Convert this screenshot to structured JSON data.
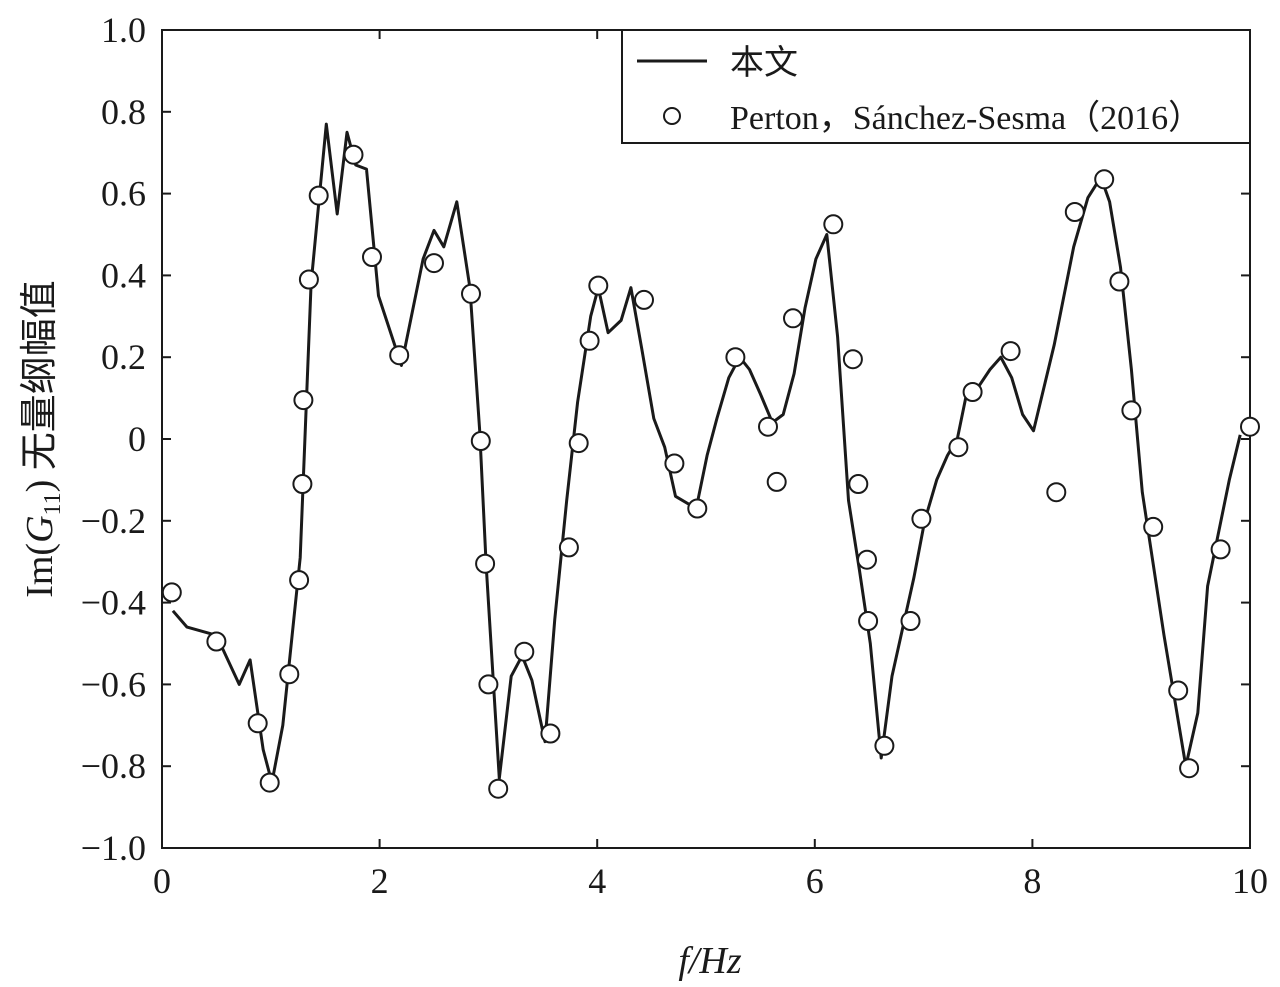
{
  "chart_data": {
    "type": "line",
    "xlabel": "f/Hz",
    "ylabel_parts": {
      "prefix": "Im(",
      "var": "G",
      "sub": "11",
      "suffix": ") 无量纲幅值"
    },
    "xlim": [
      0,
      10
    ],
    "ylim": [
      -1.0,
      1.0
    ],
    "x_ticks": [
      0,
      2,
      4,
      6,
      8,
      10
    ],
    "x_tick_labels": [
      "0",
      "2",
      "4",
      "6",
      "8",
      "10"
    ],
    "y_ticks": [
      -1.0,
      -0.8,
      -0.6,
      -0.4,
      -0.2,
      0,
      0.2,
      0.4,
      0.6,
      0.8,
      1.0
    ],
    "y_tick_labels": [
      "−1.0",
      "−0.8",
      "−0.6",
      "−0.4",
      "−0.2",
      "0",
      "0.2",
      "0.4",
      "0.6",
      "0.8",
      "1.0"
    ],
    "grid": false,
    "legend_position": "top-right",
    "series": [
      {
        "name": "本文",
        "style": "line",
        "color": "#1a1a1a",
        "x": [
          0.1,
          0.23,
          0.5,
          0.71,
          0.81,
          0.93,
          1.01,
          1.11,
          1.27,
          1.37,
          1.51,
          1.61,
          1.7,
          1.78,
          1.88,
          1.99,
          2.2,
          2.4,
          2.5,
          2.59,
          2.71,
          2.83,
          2.92,
          2.98,
          3.1,
          3.21,
          3.31,
          3.4,
          3.52,
          3.61,
          3.72,
          3.82,
          3.94,
          4.01,
          4.1,
          4.22,
          4.31,
          4.41,
          4.52,
          4.62,
          4.72,
          4.91,
          5.01,
          5.1,
          5.21,
          5.31,
          5.4,
          5.5,
          5.61,
          5.71,
          5.81,
          5.91,
          6.01,
          6.11,
          6.21,
          6.31,
          6.41,
          6.51,
          6.61,
          6.71,
          6.81,
          6.91,
          7.01,
          7.12,
          7.22,
          7.31,
          7.41,
          7.51,
          7.61,
          7.71,
          7.81,
          7.91,
          8.01,
          8.2,
          8.38,
          8.51,
          8.63,
          8.71,
          8.81,
          8.91,
          9.01,
          9.21,
          9.41,
          9.52,
          9.61,
          9.81,
          9.91
        ],
        "y": [
          -0.42,
          -0.46,
          -0.48,
          -0.6,
          -0.54,
          -0.76,
          -0.84,
          -0.7,
          -0.29,
          0.38,
          0.77,
          0.55,
          0.75,
          0.67,
          0.66,
          0.35,
          0.18,
          0.44,
          0.51,
          0.47,
          0.58,
          0.37,
          0.02,
          -0.31,
          -0.83,
          -0.58,
          -0.53,
          -0.59,
          -0.74,
          -0.44,
          -0.15,
          0.09,
          0.3,
          0.37,
          0.26,
          0.29,
          0.37,
          0.22,
          0.05,
          -0.02,
          -0.14,
          -0.17,
          -0.04,
          0.05,
          0.15,
          0.2,
          0.17,
          0.11,
          0.04,
          0.06,
          0.16,
          0.32,
          0.44,
          0.5,
          0.25,
          -0.15,
          -0.32,
          -0.5,
          -0.78,
          -0.58,
          -0.46,
          -0.34,
          -0.2,
          -0.1,
          -0.04,
          0.0,
          0.13,
          0.13,
          0.17,
          0.2,
          0.15,
          0.06,
          0.02,
          0.23,
          0.47,
          0.59,
          0.64,
          0.58,
          0.42,
          0.17,
          -0.13,
          -0.48,
          -0.8,
          -0.67,
          -0.36,
          -0.1,
          0.01
        ]
      },
      {
        "name": "Perton，Sánchez-Sesma（2016）",
        "style": "markers",
        "marker": "circle-open",
        "color": "#1a1a1a",
        "x": [
          0.09,
          0.5,
          0.88,
          0.99,
          1.17,
          1.26,
          1.29,
          1.3,
          1.35,
          1.44,
          1.76,
          1.93,
          2.18,
          2.5,
          2.84,
          2.93,
          2.97,
          3.0,
          3.09,
          3.33,
          3.57,
          3.74,
          3.83,
          3.93,
          4.01,
          4.43,
          4.71,
          4.92,
          5.27,
          5.57,
          5.65,
          5.8,
          6.17,
          6.35,
          6.4,
          6.48,
          6.49,
          6.64,
          6.88,
          6.98,
          7.32,
          7.45,
          7.8,
          8.22,
          8.39,
          8.66,
          8.8,
          8.91,
          9.11,
          9.34,
          9.44,
          9.73,
          10.0
        ],
        "y": [
          -0.375,
          -0.495,
          -0.695,
          -0.84,
          -0.575,
          -0.345,
          -0.11,
          0.095,
          0.39,
          0.595,
          0.695,
          0.445,
          0.205,
          0.43,
          0.355,
          -0.005,
          -0.305,
          -0.6,
          -0.855,
          -0.52,
          -0.72,
          -0.265,
          -0.01,
          0.24,
          0.375,
          0.34,
          -0.06,
          -0.17,
          0.2,
          0.03,
          -0.105,
          0.295,
          0.525,
          0.195,
          -0.11,
          -0.295,
          -0.445,
          -0.75,
          -0.445,
          -0.195,
          -0.02,
          0.115,
          0.215,
          -0.13,
          0.555,
          0.635,
          0.385,
          0.07,
          -0.215,
          -0.615,
          -0.805,
          -0.27,
          0.03
        ]
      }
    ]
  }
}
